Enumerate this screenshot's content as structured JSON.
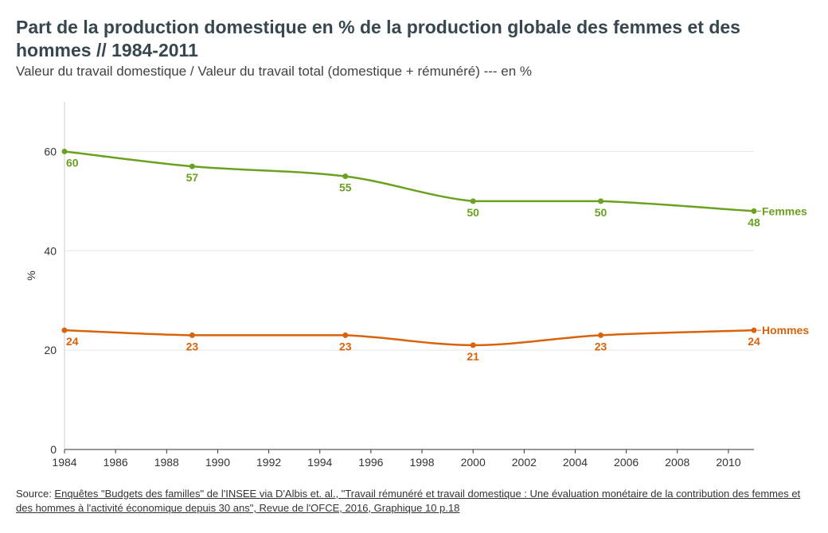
{
  "title": "Part de la production domestique en % de la production globale des femmes et des hommes // 1984-2011",
  "subtitle": "Valeur du travail domestique / Valeur du travail total (domestique + rémunéré) --- en %",
  "source": {
    "prefix": "Source: ",
    "text": "Enquêtes \"Budgets des familles\" de l'INSEE via D'Albis et. al., \"Travail rémunéré et travail domestique : Une évaluation monétaire de la contribution des femmes et des hommes à l'activité économique depuis 30 ans\", Revue de l'OFCE, 2016, Graphique 10 p.18"
  },
  "chart_data": {
    "type": "line",
    "title": "Part de la production domestique en % de la production globale des femmes et des hommes // 1984-2011",
    "subtitle": "Valeur du travail domestique / Valeur du travail total (domestique + rémunéré) --- en %",
    "xlabel": "",
    "ylabel": "%",
    "xlim": [
      1984,
      2011
    ],
    "ylim": [
      0,
      70
    ],
    "xticks": [
      1984,
      1986,
      1988,
      1990,
      1992,
      1994,
      1996,
      1998,
      2000,
      2002,
      2004,
      2006,
      2008,
      2010
    ],
    "yticks": [
      0,
      20,
      40,
      60
    ],
    "grid": true,
    "legend": "direct labels at line ends",
    "series": [
      {
        "name": "Femmes",
        "color": "#6aa121",
        "x": [
          1984,
          1989,
          1995,
          2000,
          2005,
          2011
        ],
        "values": [
          60,
          57,
          55,
          50,
          50,
          48
        ]
      },
      {
        "name": "Hommes",
        "color": "#d9620b",
        "x": [
          1984,
          1989,
          1995,
          2000,
          2005,
          2011
        ],
        "values": [
          24,
          23,
          23,
          21,
          23,
          24
        ]
      }
    ]
  }
}
